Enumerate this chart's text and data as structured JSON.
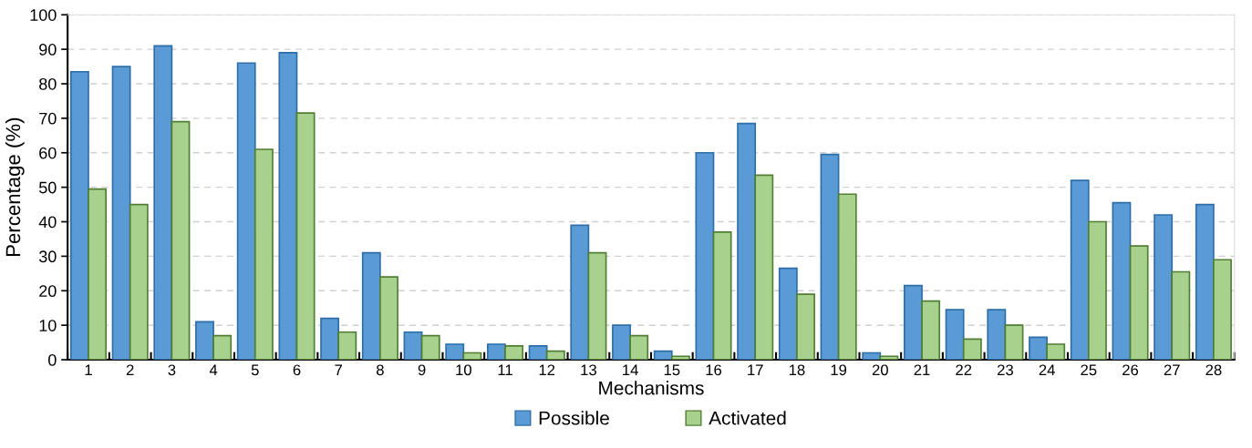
{
  "chart_data": {
    "type": "bar",
    "xlabel": "Mechanisms",
    "ylabel": "Percentage (%)",
    "categories": [
      "1",
      "2",
      "3",
      "4",
      "5",
      "6",
      "7",
      "8",
      "9",
      "10",
      "11",
      "12",
      "13",
      "14",
      "15",
      "16",
      "17",
      "18",
      "19",
      "20",
      "21",
      "22",
      "23",
      "24",
      "25",
      "26",
      "27",
      "28"
    ],
    "series": [
      {
        "name": "Possible",
        "color": "#5b9bd5",
        "values": [
          83.5,
          85,
          91,
          11,
          86,
          89,
          12,
          31,
          8,
          4.5,
          4.5,
          4,
          39,
          10,
          2.5,
          60,
          68.5,
          26.5,
          59.5,
          2,
          21.5,
          14.5,
          14.5,
          6.5,
          52,
          45.5,
          42,
          45
        ]
      },
      {
        "name": "Activated",
        "color": "#a9d18e",
        "values": [
          49.5,
          45,
          69,
          7,
          61,
          71.5,
          8,
          24,
          7,
          2,
          4,
          2.5,
          31,
          7,
          1,
          37,
          53.5,
          19,
          48,
          1,
          17,
          6,
          10,
          4.5,
          40,
          33,
          25.5,
          29
        ]
      }
    ],
    "ylim": [
      0,
      100
    ],
    "yticks": [
      0,
      10,
      20,
      30,
      40,
      50,
      60,
      70,
      80,
      90,
      100
    ],
    "grid": "y",
    "legend": "bottom"
  }
}
